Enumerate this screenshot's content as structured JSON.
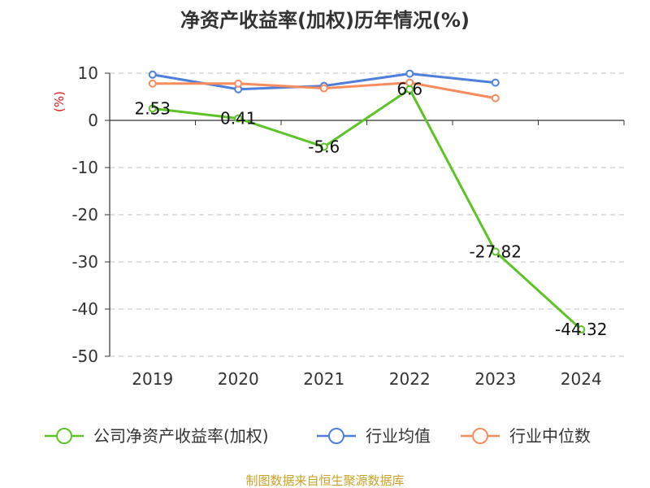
{
  "chart_data": {
    "type": "line",
    "title": "净资产收益率(加权)历年情况(%)",
    "ylabel": "(%)",
    "xlabel": "",
    "categories": [
      "2019",
      "2020",
      "2021",
      "2022",
      "2023",
      "2024"
    ],
    "ylim": [
      -50,
      10
    ],
    "yticks": [
      10,
      0,
      -10,
      -20,
      -30,
      -40,
      -50
    ],
    "grid": true,
    "legend_position": "bottom",
    "series": [
      {
        "name": "公司净资产收益率(加权)",
        "color": "#5cc424",
        "values": [
          2.53,
          0.41,
          -5.6,
          6.6,
          -27.82,
          -44.32
        ],
        "labels": [
          "2.53",
          "0.41",
          "-5.6",
          "6.6",
          "-27.82",
          "-44.32"
        ]
      },
      {
        "name": "行业均值",
        "color": "#4f7fdc",
        "values": [
          9.7,
          6.6,
          7.3,
          9.9,
          8.0,
          null
        ]
      },
      {
        "name": "行业中位数",
        "color": "#f88c5c",
        "values": [
          7.8,
          7.8,
          6.8,
          8.0,
          4.7,
          null
        ]
      }
    ],
    "source": "制图数据来自恒生聚源数据库"
  }
}
